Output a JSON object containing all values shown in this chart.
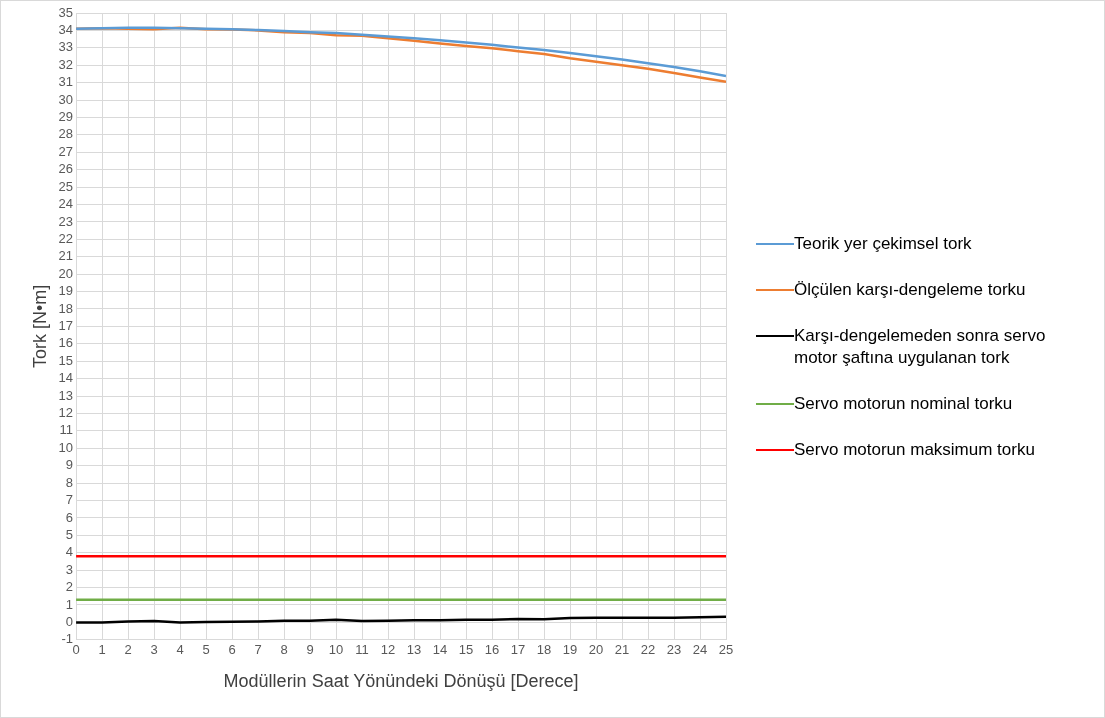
{
  "chart_data": {
    "type": "line",
    "xlabel": "Modüllerin Saat Yönündeki Dönüşü [Derece]",
    "ylabel": "Tork [N•m]",
    "x": [
      0,
      1,
      2,
      3,
      4,
      5,
      6,
      7,
      8,
      9,
      10,
      11,
      12,
      13,
      14,
      15,
      16,
      17,
      18,
      19,
      20,
      21,
      22,
      23,
      24,
      25
    ],
    "xlim": [
      0,
      25
    ],
    "xticks": [
      0,
      1,
      2,
      3,
      4,
      5,
      6,
      7,
      8,
      9,
      10,
      11,
      12,
      13,
      14,
      15,
      16,
      17,
      18,
      19,
      20,
      21,
      22,
      23,
      24,
      25
    ],
    "ylim": [
      -1,
      35
    ],
    "yticks": [
      -1,
      0,
      1,
      2,
      3,
      4,
      5,
      6,
      7,
      8,
      9,
      10,
      11,
      12,
      13,
      14,
      15,
      16,
      17,
      18,
      19,
      20,
      21,
      22,
      23,
      24,
      25,
      26,
      27,
      28,
      29,
      30,
      31,
      32,
      33,
      34,
      35
    ],
    "grid": true,
    "legend": "right",
    "marker": "none",
    "line_style": "solid",
    "series": [
      {
        "name": "Teorik yer çekimsel tork",
        "color": "#5b9bd5",
        "values": [
          34.1,
          34.13,
          34.15,
          34.15,
          34.13,
          34.1,
          34.07,
          34.02,
          33.97,
          33.9,
          33.85,
          33.75,
          33.65,
          33.55,
          33.43,
          33.3,
          33.17,
          33.02,
          32.87,
          32.7,
          32.52,
          32.33,
          32.12,
          31.9,
          31.65,
          31.38
        ]
      },
      {
        "name": "Ölçülen karşı-dengeleme torku",
        "color": "#ed7d31",
        "values": [
          34.1,
          34.12,
          34.1,
          34.07,
          34.15,
          34.07,
          34.05,
          34.0,
          33.9,
          33.85,
          33.72,
          33.7,
          33.55,
          33.4,
          33.25,
          33.1,
          32.98,
          32.8,
          32.65,
          32.4,
          32.2,
          32.0,
          31.8,
          31.55,
          31.3,
          31.05
        ]
      },
      {
        "name": "Karşı-dengelemeden sonra servo motor şaftına uygulanan tork",
        "color": "#000000",
        "values": [
          0,
          0,
          0.05,
          0.08,
          0,
          0.02,
          0.04,
          0.05,
          0.1,
          0.1,
          0.15,
          0.08,
          0.1,
          0.12,
          0.13,
          0.15,
          0.15,
          0.2,
          0.18,
          0.25,
          0.27,
          0.27,
          0.27,
          0.27,
          0.3,
          0.32
        ]
      },
      {
        "name": "Servo motorun nominal torku",
        "color": "#70ad47",
        "values": [
          1.3,
          1.3,
          1.3,
          1.3,
          1.3,
          1.3,
          1.3,
          1.3,
          1.3,
          1.3,
          1.3,
          1.3,
          1.3,
          1.3,
          1.3,
          1.3,
          1.3,
          1.3,
          1.3,
          1.3,
          1.3,
          1.3,
          1.3,
          1.3,
          1.3,
          1.3
        ]
      },
      {
        "name": "Servo motorun maksimum torku",
        "color": "#ff0000",
        "values": [
          3.8,
          3.8,
          3.8,
          3.8,
          3.8,
          3.8,
          3.8,
          3.8,
          3.8,
          3.8,
          3.8,
          3.8,
          3.8,
          3.8,
          3.8,
          3.8,
          3.8,
          3.8,
          3.8,
          3.8,
          3.8,
          3.8,
          3.8,
          3.8,
          3.8,
          3.8
        ]
      }
    ]
  }
}
